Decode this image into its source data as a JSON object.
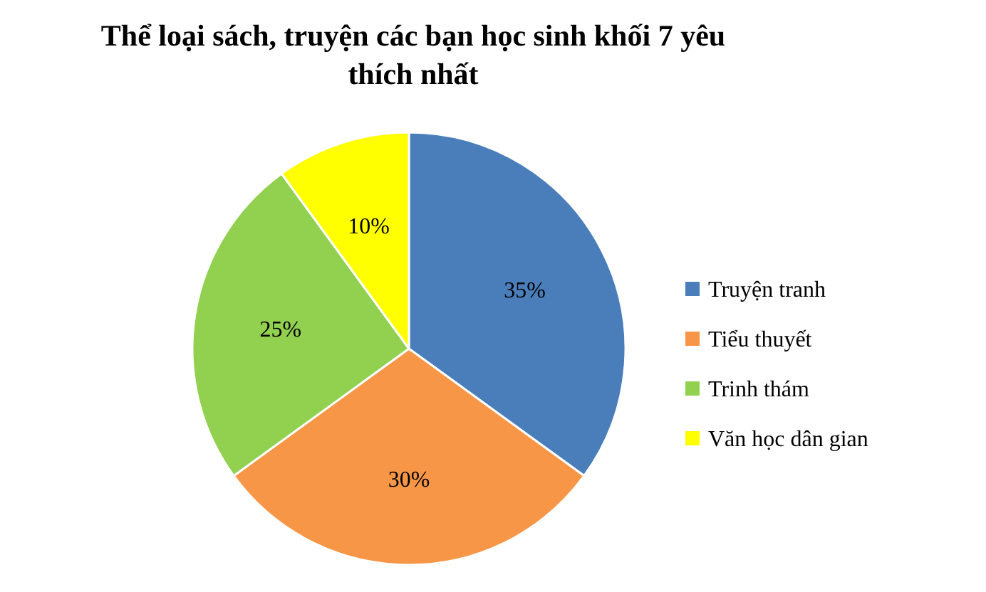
{
  "chart_data": {
    "type": "pie",
    "title": "Thể loại sách, truyện các bạn học sinh khối 7 yêu thích nhất",
    "categories": [
      "Truyện tranh",
      "Tiểu thuyết",
      "Trinh thám",
      "Văn học dân gian"
    ],
    "values": [
      35,
      30,
      25,
      10
    ],
    "colors": [
      "#4a7ebb",
      "#f79646",
      "#92d050",
      "#ffff00"
    ],
    "value_labels": [
      "35%",
      "30%",
      "25%",
      "10%"
    ],
    "legend": "right"
  }
}
